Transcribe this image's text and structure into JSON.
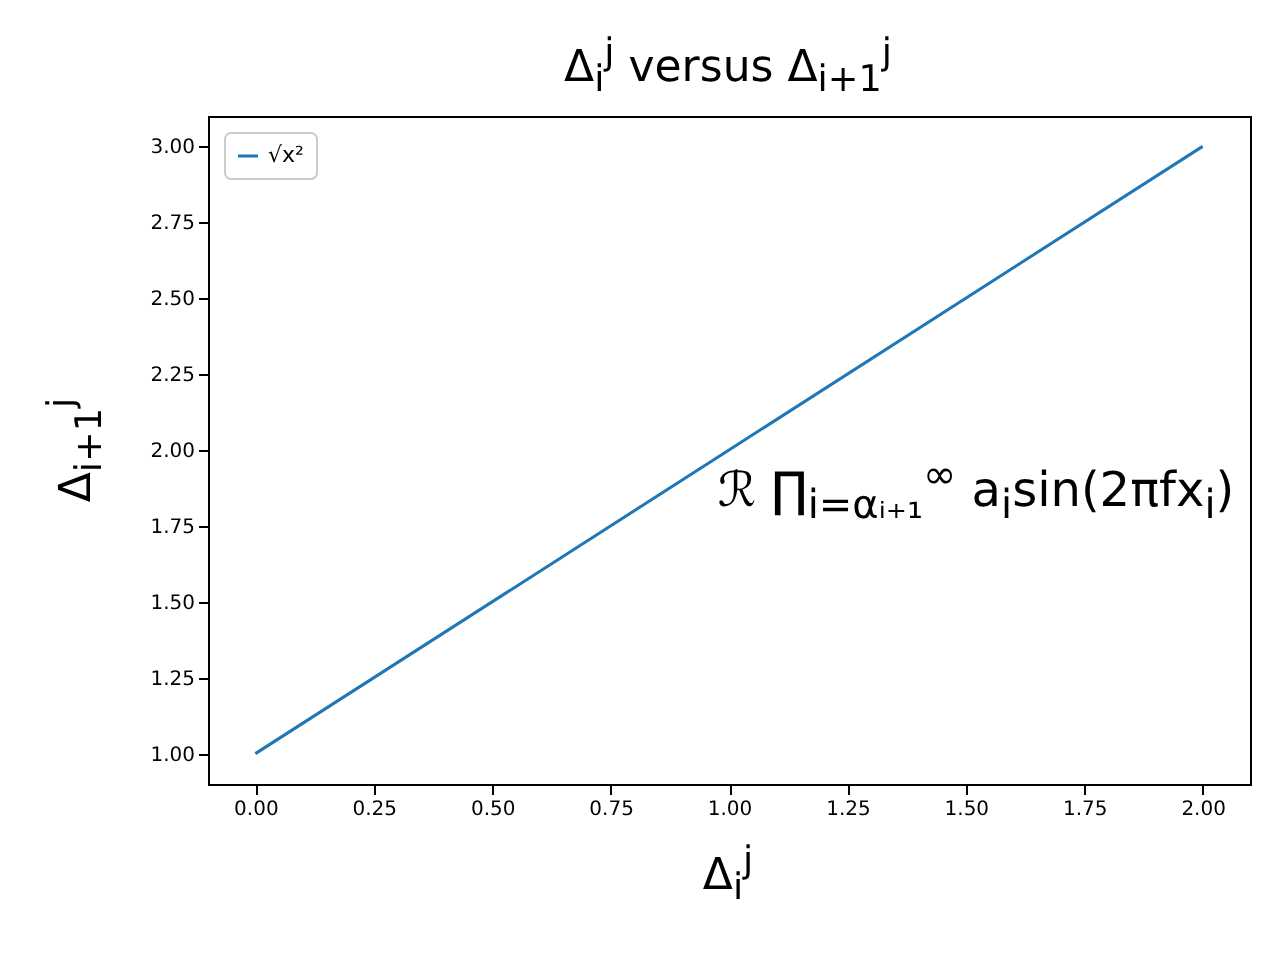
{
  "chart_data": {
    "type": "line",
    "title": "Δ$_{i}$$^{j}$ versus Δ$_{i+1}$$^{j}$",
    "xlabel": "Δ$_{i}$$^{j}$",
    "ylabel": "Δ$_{i+1}$$^{j}$",
    "annotations": [
      "ℛ ∏$_{i=αᵢ₊₁}$$^{∞}$ a$_{i}$sin(2πfx$_{i}$)"
    ],
    "x": [
      0,
      1,
      2
    ],
    "series": [
      {
        "name": "√x²",
        "color": "#1f77b4",
        "values": [
          1,
          2,
          3
        ]
      }
    ],
    "xlim": [
      -0.1,
      2.1
    ],
    "ylim": [
      0.9,
      3.1
    ],
    "xticks": [
      {
        "value": 0,
        "label": "0.00"
      },
      {
        "value": 0.25,
        "label": "0.25"
      },
      {
        "value": 0.5,
        "label": "0.50"
      },
      {
        "value": 0.75,
        "label": "0.75"
      },
      {
        "value": 1,
        "label": "1.00"
      },
      {
        "value": 1.25,
        "label": "1.25"
      },
      {
        "value": 1.5,
        "label": "1.50"
      },
      {
        "value": 1.75,
        "label": "1.75"
      },
      {
        "value": 2,
        "label": "2.00"
      }
    ],
    "yticks": [
      {
        "value": 1,
        "label": "1.00"
      },
      {
        "value": 1.25,
        "label": "1.25"
      },
      {
        "value": 1.5,
        "label": "1.50"
      },
      {
        "value": 1.75,
        "label": "1.75"
      },
      {
        "value": 2,
        "label": "2.00"
      },
      {
        "value": 2.25,
        "label": "2.25"
      },
      {
        "value": 2.5,
        "label": "2.50"
      },
      {
        "value": 2.75,
        "label": "2.75"
      },
      {
        "value": 3,
        "label": "3.00"
      }
    ],
    "grid": false,
    "legend": "top left",
    "marker": "none",
    "line_style": "solid"
  }
}
